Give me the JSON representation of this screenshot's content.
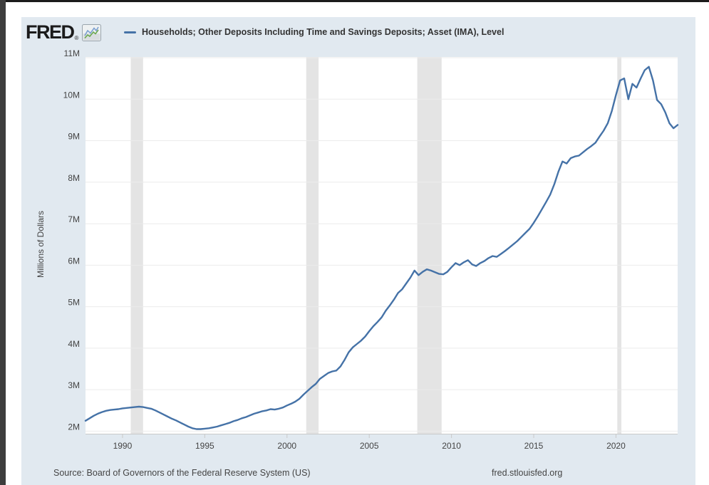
{
  "page": {
    "frame_top_color": "#1b1b1b",
    "frame_left_color": "#3d3d3d",
    "card_background": "#e1e9f0"
  },
  "header": {
    "logo_text": "FRED",
    "registered_mark": "®",
    "logo_icon": "fred-zigzag-chart-icon",
    "legend": {
      "swatch_color": "#4572a7",
      "series_label": "Households; Other Deposits Including Time and Savings Deposits; Asset (IMA), Level"
    }
  },
  "footer": {
    "source_text": "Source: Board of Governors of the Federal Reserve System (US)",
    "site_link_text": "fred.stlouisfed.org"
  },
  "chart_data": {
    "type": "line",
    "title": "Households; Other Deposits Including Time and Savings Deposits; Asset (IMA), Level",
    "ylabel": "Millions of Dollars",
    "xlabel": "",
    "frequency": "quarterly",
    "x_first": 1987.75,
    "x_step": 0.25,
    "x_last": 2023.75,
    "unit_note": "axis labels in M = millions of millions of dollars",
    "values": [
      2.25,
      2.31,
      2.37,
      2.42,
      2.46,
      2.49,
      2.51,
      2.52,
      2.53,
      2.55,
      2.56,
      2.57,
      2.58,
      2.59,
      2.58,
      2.56,
      2.54,
      2.5,
      2.45,
      2.4,
      2.35,
      2.3,
      2.26,
      2.21,
      2.16,
      2.11,
      2.07,
      2.05,
      2.05,
      2.06,
      2.07,
      2.09,
      2.11,
      2.14,
      2.17,
      2.2,
      2.24,
      2.27,
      2.31,
      2.34,
      2.38,
      2.42,
      2.45,
      2.48,
      2.5,
      2.53,
      2.52,
      2.54,
      2.57,
      2.62,
      2.66,
      2.71,
      2.78,
      2.88,
      2.97,
      3.06,
      3.14,
      3.26,
      3.33,
      3.4,
      3.44,
      3.46,
      3.56,
      3.72,
      3.9,
      4.02,
      4.1,
      4.18,
      4.28,
      4.41,
      4.53,
      4.63,
      4.74,
      4.9,
      5.03,
      5.17,
      5.33,
      5.42,
      5.56,
      5.7,
      5.87,
      5.76,
      5.84,
      5.9,
      5.87,
      5.83,
      5.79,
      5.78,
      5.84,
      5.95,
      6.05,
      6.0,
      6.07,
      6.12,
      6.02,
      5.98,
      6.05,
      6.1,
      6.17,
      6.22,
      6.2,
      6.27,
      6.34,
      6.42,
      6.5,
      6.58,
      6.68,
      6.78,
      6.88,
      7.02,
      7.18,
      7.35,
      7.52,
      7.7,
      7.95,
      8.25,
      8.5,
      8.45,
      8.58,
      8.62,
      8.64,
      8.72,
      8.8,
      8.87,
      8.95,
      9.1,
      9.24,
      9.42,
      9.72,
      10.1,
      10.45,
      10.5,
      10.0,
      10.37,
      10.28,
      10.5,
      10.7,
      10.78,
      10.45,
      9.98,
      9.88,
      9.68,
      9.42,
      9.3,
      9.38
    ],
    "ylim": [
      2,
      11
    ],
    "y_tick_values": [
      2,
      3,
      4,
      5,
      6,
      7,
      8,
      9,
      10,
      11
    ],
    "y_tick_labels": [
      "2M",
      "3M",
      "4M",
      "5M",
      "6M",
      "7M",
      "8M",
      "9M",
      "10M",
      "11M"
    ],
    "x_tick_values": [
      1990,
      1995,
      2000,
      2005,
      2010,
      2015,
      2020
    ],
    "x_tick_labels": [
      "1990",
      "1995",
      "2000",
      "2005",
      "2010",
      "2015",
      "2020"
    ],
    "recession_bands": [
      [
        1990.5,
        1991.25
      ],
      [
        2001.17,
        2001.92
      ],
      [
        2007.92,
        2009.4
      ],
      [
        2020.08,
        2020.33
      ]
    ],
    "line_color": "#4572a7",
    "recession_color": "#e4e4e4",
    "grid_color": "#ebebeb",
    "plot_background": "#ffffff",
    "grid": true,
    "legend_position": "top"
  }
}
